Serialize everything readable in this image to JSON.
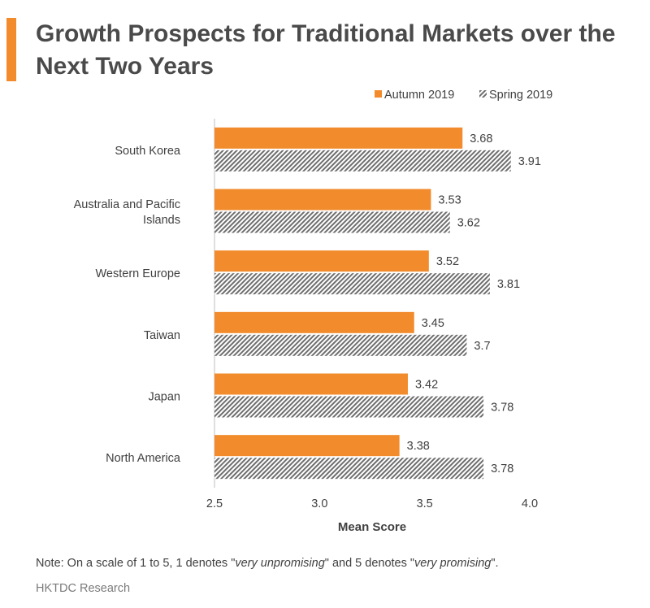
{
  "header": {
    "title": "Growth Prospects for Traditional Markets over the Next Two Years"
  },
  "chart_data": {
    "type": "bar",
    "orientation": "horizontal",
    "title": "Growth Prospects for Traditional Markets over the Next Two Years",
    "categories": [
      "South Korea",
      "Australia and Pacific Islands",
      "Western Europe",
      "Taiwan",
      "Japan",
      "North America"
    ],
    "series": [
      {
        "name": "Autumn 2019",
        "values": [
          3.68,
          3.53,
          3.52,
          3.45,
          3.42,
          3.38
        ],
        "color": "#f28b2c",
        "pattern": "solid"
      },
      {
        "name": "Spring 2019",
        "values": [
          3.91,
          3.62,
          3.81,
          3.7,
          3.78,
          3.78
        ],
        "color": "#666666",
        "pattern": "diagonal-hatch"
      }
    ],
    "data_labels": [
      [
        "3.68",
        "3.53",
        "3.52",
        "3.45",
        "3.42",
        "3.38"
      ],
      [
        "3.91",
        "3.62",
        "3.81",
        "3.7",
        "3.78",
        "3.78"
      ]
    ],
    "xlabel": "Mean Score",
    "ylabel": "",
    "xlim": [
      2.5,
      4.0
    ],
    "xticks": [
      "2.5",
      "3.0",
      "3.5",
      "4.0"
    ],
    "grid": false,
    "legend": "top-right"
  },
  "footer": {
    "note_prefix": "Note: On a scale of 1 to 5, 1 denotes \"",
    "note_term1": "very unpromising",
    "note_middle": "\" and 5 denotes \"",
    "note_term2": "very promising",
    "note_suffix": "\".",
    "source": "HKTDC Research"
  }
}
